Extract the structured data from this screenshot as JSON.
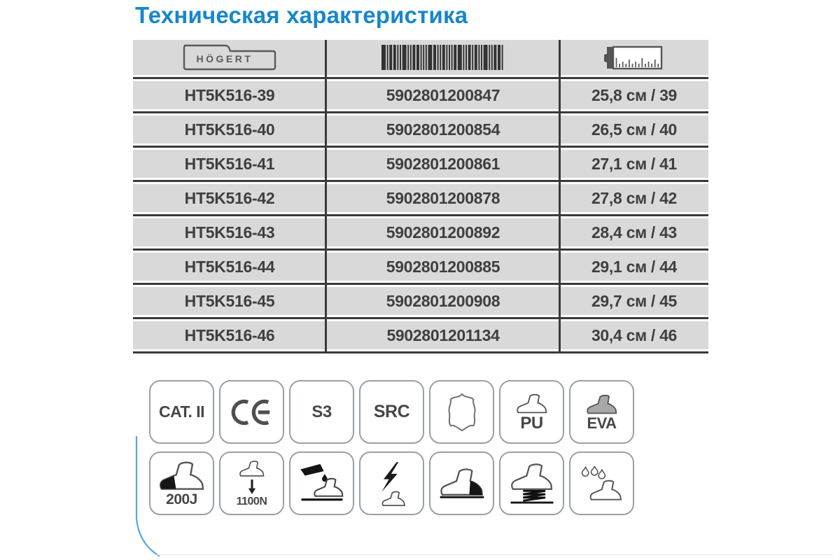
{
  "page": {
    "title": "Техническая характеристика"
  },
  "table": {
    "header": {
      "brand": "HÖGERT",
      "icons": [
        "hogert-logo",
        "barcode-icon",
        "tape-measure-icon"
      ]
    },
    "rows": [
      {
        "sku": "HT5K516-39",
        "ean": "5902801200847",
        "size": "25,8 см / 39"
      },
      {
        "sku": "HT5K516-40",
        "ean": "5902801200854",
        "size": "26,5 см / 40"
      },
      {
        "sku": "HT5K516-41",
        "ean": "5902801200861",
        "size": "27,1 см / 41"
      },
      {
        "sku": "HT5K516-42",
        "ean": "5902801200878",
        "size": "27,8 см / 42"
      },
      {
        "sku": "HT5K516-43",
        "ean": "5902801200892",
        "size": "28,4 см / 43"
      },
      {
        "sku": "HT5K516-44",
        "ean": "5902801200885",
        "size": "29,1 см / 44"
      },
      {
        "sku": "HT5K516-45",
        "ean": "5902801200908",
        "size": "29,7 см / 45"
      },
      {
        "sku": "HT5K516-46",
        "ean": "5902801201134",
        "size": "30,4 см / 46"
      }
    ]
  },
  "badges": {
    "row1": [
      {
        "id": "cat-ii",
        "label": "CAT. II",
        "icon": ""
      },
      {
        "id": "ce-mark",
        "label": "",
        "icon": "ce-mark-icon"
      },
      {
        "id": "s3",
        "label": "S3",
        "icon": ""
      },
      {
        "id": "src",
        "label": "SRC",
        "icon": ""
      },
      {
        "id": "leather",
        "label": "",
        "icon": "leather-hide-icon"
      },
      {
        "id": "pu",
        "label": "PU",
        "icon": "shoe-outline-icon"
      },
      {
        "id": "eva",
        "label": "EVA",
        "icon": "shoe-filled-icon"
      }
    ],
    "row2": [
      {
        "id": "impact-200j",
        "label": "200J",
        "icon": "toe-cap-shoe-icon"
      },
      {
        "id": "compression-1100n",
        "label": "1100N",
        "icon": "compression-shoe-icon"
      },
      {
        "id": "oil-resistant",
        "label": "",
        "icon": "oil-pour-shoe-icon"
      },
      {
        "id": "antistatic",
        "label": "",
        "icon": "lightning-shoe-icon"
      },
      {
        "id": "energy-absorbing-heel",
        "label": "",
        "icon": "black-heel-shoe-icon"
      },
      {
        "id": "shock-absorption",
        "label": "",
        "icon": "spring-shoe-icon"
      },
      {
        "id": "water-resistant",
        "label": "",
        "icon": "water-drops-shoe-icon"
      }
    ]
  },
  "colors": {
    "accent_blue": "#1787c9",
    "cell_gray": "#d9d9d9",
    "line_dark": "#3a3a3a",
    "text_dark": "#3f3f3f",
    "badge_border": "#9aa0a4",
    "curve_blue": "#57a7de"
  }
}
